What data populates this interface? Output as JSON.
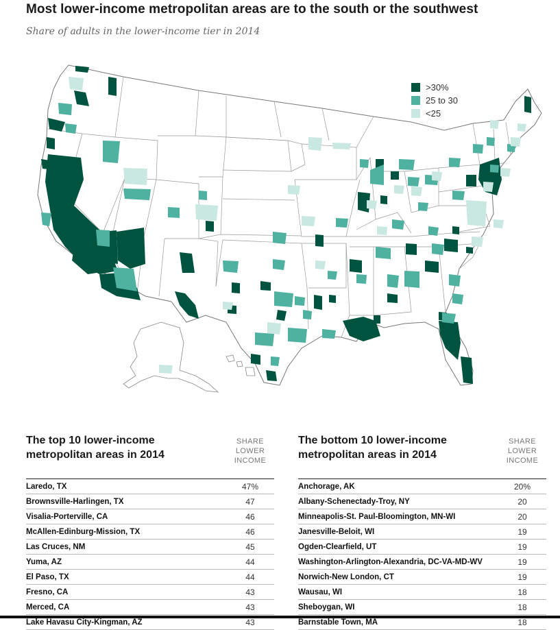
{
  "title": "Most lower-income metropolitan areas are to the south or the southwest",
  "subtitle": "Share of adults in the lower-income tier in 2014",
  "legend": [
    {
      "label": ">30%",
      "color": "#00543f"
    },
    {
      "label": "25 to 30",
      "color": "#4fb19f"
    },
    {
      "label": "<25",
      "color": "#c9e8e2"
    }
  ],
  "colors": {
    "dark": "#00543f",
    "mid": "#4fb19f",
    "light": "#c9e8e2",
    "state_border": "#888888"
  },
  "top10": {
    "title": "The top 10 lower-income metropolitan areas in 2014",
    "colhead": "SHARE LOWER INCOME",
    "rows": [
      {
        "name": "Laredo, TX",
        "value": "47%"
      },
      {
        "name": "Brownsville-Harlingen, TX",
        "value": "47"
      },
      {
        "name": "Visalia-Porterville, CA",
        "value": "46"
      },
      {
        "name": "McAllen-Edinburg-Mission, TX",
        "value": "46"
      },
      {
        "name": "Las Cruces, NM",
        "value": "45"
      },
      {
        "name": "Yuma, AZ",
        "value": "44"
      },
      {
        "name": "El Paso, TX",
        "value": "44"
      },
      {
        "name": "Fresno, CA",
        "value": "43"
      },
      {
        "name": "Merced, CA",
        "value": "43"
      },
      {
        "name": "Lake Havasu City-Kingman, AZ",
        "value": "43"
      }
    ]
  },
  "bottom10": {
    "title": "The bottom 10 lower-income metropolitan areas in 2014",
    "colhead": "SHARE LOWER INCOME",
    "rows": [
      {
        "name": "Anchorage, AK",
        "value": "20%"
      },
      {
        "name": "Albany-Schenectady-Troy, NY",
        "value": "20"
      },
      {
        "name": "Minneapolis-St. Paul-Bloomington, MN-WI",
        "value": "20"
      },
      {
        "name": "Janesville-Beloit, WI",
        "value": "19"
      },
      {
        "name": "Ogden-Clearfield, UT",
        "value": "19"
      },
      {
        "name": "Washington-Arlington-Alexandria, DC-VA-MD-WV",
        "value": "19"
      },
      {
        "name": "Norwich-New London, CT",
        "value": "19"
      },
      {
        "name": "Wausau, WI",
        "value": "18"
      },
      {
        "name": "Sheboygan, WI",
        "value": "18"
      },
      {
        "name": "Barnstable Town, MA",
        "value": "18"
      }
    ]
  }
}
